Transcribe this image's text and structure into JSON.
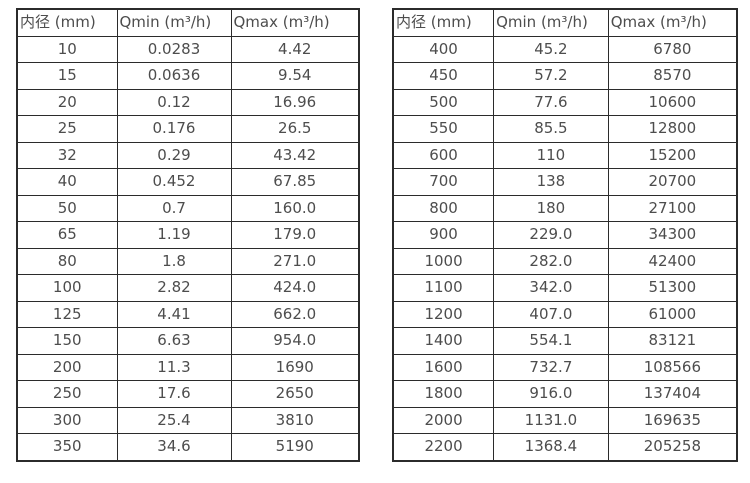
{
  "page": {
    "background": "#ffffff",
    "text_color": "#4d4d4d",
    "border_color": "#2b2b2b"
  },
  "chart_data": [
    {
      "type": "table",
      "title": "",
      "columns": [
        "内径 (mm)",
        "Qmin (m³/h)",
        "Qmax (m³/h)"
      ],
      "rows": [
        [
          "10",
          "0.0283",
          "4.42"
        ],
        [
          "15",
          "0.0636",
          "9.54"
        ],
        [
          "20",
          "0.12",
          "16.96"
        ],
        [
          "25",
          "0.176",
          "26.5"
        ],
        [
          "32",
          "0.29",
          "43.42"
        ],
        [
          "40",
          "0.452",
          "67.85"
        ],
        [
          "50",
          "0.7",
          "160.0"
        ],
        [
          "65",
          "1.19",
          "179.0"
        ],
        [
          "80",
          "1.8",
          "271.0"
        ],
        [
          "100",
          "2.82",
          "424.0"
        ],
        [
          "125",
          "4.41",
          "662.0"
        ],
        [
          "150",
          "6.63",
          "954.0"
        ],
        [
          "200",
          "11.3",
          "1690"
        ],
        [
          "250",
          "17.6",
          "2650"
        ],
        [
          "300",
          "25.4",
          "3810"
        ],
        [
          "350",
          "34.6",
          "5190"
        ]
      ]
    },
    {
      "type": "table",
      "title": "",
      "columns": [
        "内径 (mm)",
        "Qmin (m³/h)",
        "Qmax (m³/h)"
      ],
      "rows": [
        [
          "400",
          "45.2",
          "6780"
        ],
        [
          "450",
          "57.2",
          "8570"
        ],
        [
          "500",
          "77.6",
          "10600"
        ],
        [
          "550",
          "85.5",
          "12800"
        ],
        [
          "600",
          "110",
          "15200"
        ],
        [
          "700",
          "138",
          "20700"
        ],
        [
          "800",
          "180",
          "27100"
        ],
        [
          "900",
          "229.0",
          "34300"
        ],
        [
          "1000",
          "282.0",
          "42400"
        ],
        [
          "1100",
          "342.0",
          "51300"
        ],
        [
          "1200",
          "407.0",
          "61000"
        ],
        [
          "1400",
          "554.1",
          "83121"
        ],
        [
          "1600",
          "732.7",
          "108566"
        ],
        [
          "1800",
          "916.0",
          "137404"
        ],
        [
          "2000",
          "1131.0",
          "169635"
        ],
        [
          "2200",
          "1368.4",
          "205258"
        ]
      ]
    }
  ]
}
